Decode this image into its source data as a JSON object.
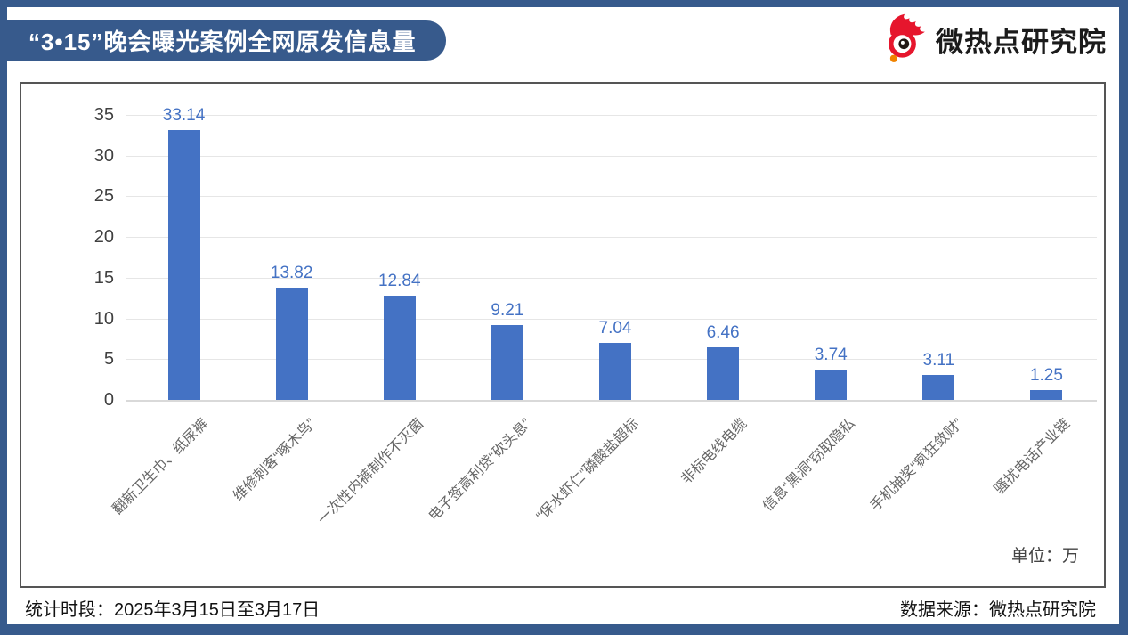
{
  "header": {
    "title": "“3•15”晚会曝光案例全网原发信息量",
    "logo_text": "微热点研究院"
  },
  "chart_data": {
    "type": "bar",
    "title": "“3•15”晚会曝光案例全网原发信息量",
    "categories": [
      "翻新卫生巾、纸尿裤",
      "维修刺客“啄木鸟”",
      "一次性内裤制作不灭菌",
      "电子签高利贷“砍头息”",
      "“保水虾仁”磷酸盐超标",
      "非标电线电缆",
      "信息“黑洞”窃取隐私",
      "手机抽奖“疯狂敛财”",
      "骚扰电话产业链"
    ],
    "values": [
      33.14,
      13.82,
      12.84,
      9.21,
      7.04,
      6.46,
      3.74,
      3.11,
      1.25
    ],
    "xlabel": "",
    "ylabel": "",
    "ylim": [
      0,
      35
    ],
    "ytick_step": 5,
    "grid": true,
    "legend": "none",
    "unit_label": "单位：万",
    "bar_color": "#4472C4",
    "value_label_color": "#4472C4"
  },
  "footer": {
    "period": "统计时段：2025年3月15日至3月17日",
    "source": "数据来源：微热点研究院"
  },
  "colors": {
    "frame_blue": "#375A8C",
    "bar_blue": "#4472C4",
    "logo_red": "#E6162D",
    "logo_orange": "#F08300",
    "gridline": "#E6E6E6"
  }
}
